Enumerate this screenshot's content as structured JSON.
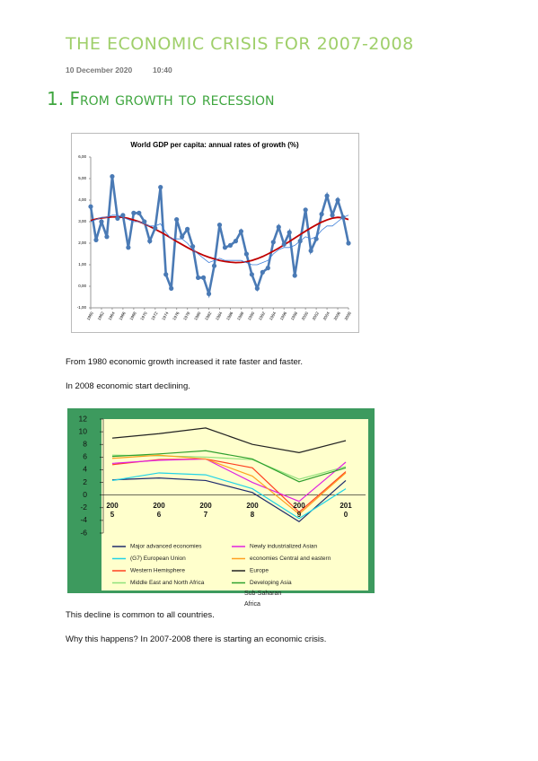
{
  "header": {
    "title": "THE ECONOMIC CRISIS FOR 2007-2008",
    "date": "10 December 2020",
    "time": "10:40"
  },
  "heading": "1. From growth to recession",
  "figures": [
    {
      "type": "line",
      "title": "World GDP per capita: annual rates of growth (%)",
      "x": [
        1960,
        1961,
        1962,
        1963,
        1964,
        1965,
        1966,
        1967,
        1968,
        1969,
        1970,
        1971,
        1972,
        1973,
        1974,
        1975,
        1976,
        1977,
        1978,
        1979,
        1980,
        1981,
        1982,
        1983,
        1984,
        1985,
        1986,
        1987,
        1988,
        1989,
        1990,
        1991,
        1992,
        1993,
        1994,
        1995,
        1996,
        1997,
        1998,
        1999,
        2000,
        2001,
        2002,
        2003,
        2004,
        2005,
        2006,
        2007,
        2008
      ],
      "xlim": [
        1960,
        2008
      ],
      "xticks": [
        1960,
        1962,
        1964,
        1966,
        1968,
        1970,
        1972,
        1974,
        1976,
        1978,
        1980,
        1982,
        1984,
        1986,
        1988,
        1990,
        1992,
        1994,
        1996,
        1998,
        2000,
        2002,
        2004,
        2006,
        2008
      ],
      "ylim": [
        -1,
        6
      ],
      "yticks": [
        {
          "value": 6,
          "label": "6,00"
        },
        {
          "value": 5,
          "label": "5,00"
        },
        {
          "value": 4,
          "label": "4,00"
        },
        {
          "value": 3,
          "label": "3,00"
        },
        {
          "value": 2,
          "label": "2,00"
        },
        {
          "value": 1,
          "label": "1,00"
        },
        {
          "value": 0,
          "label": "0,00"
        },
        {
          "value": -1,
          "label": "-1,00"
        }
      ],
      "series": [
        {
          "color": "#4a7ab5",
          "markers": true,
          "values": [
            3.7,
            2.15,
            3.0,
            2.3,
            5.1,
            3.15,
            3.3,
            1.8,
            3.4,
            3.4,
            3.0,
            2.1,
            2.7,
            4.6,
            0.55,
            -0.1,
            3.1,
            2.3,
            2.65,
            1.85,
            0.4,
            0.4,
            -0.35,
            0.95,
            2.85,
            1.8,
            1.9,
            2.1,
            2.55,
            1.5,
            0.55,
            -0.1,
            0.65,
            0.85,
            2.05,
            2.75,
            1.95,
            2.5,
            0.5,
            2.1,
            3.55,
            1.65,
            2.2,
            3.35,
            4.2,
            3.3,
            4.0,
            3.2,
            2.0
          ]
        },
        {
          "color": "#c00000",
          "values": [
            3.05,
            3.12,
            3.17,
            3.2,
            3.22,
            3.22,
            3.2,
            3.15,
            3.08,
            3.0,
            2.9,
            2.78,
            2.65,
            2.52,
            2.38,
            2.23,
            2.08,
            1.94,
            1.8,
            1.67,
            1.55,
            1.44,
            1.35,
            1.27,
            1.2,
            1.15,
            1.12,
            1.1,
            1.11,
            1.14,
            1.2,
            1.28,
            1.38,
            1.5,
            1.63,
            1.77,
            1.92,
            2.08,
            2.24,
            2.4,
            2.56,
            2.71,
            2.85,
            2.98,
            3.08,
            3.16,
            3.2,
            3.18,
            3.1
          ]
        },
        {
          "color": "#3b7dd8",
          "values": [
            3.0,
            3.1,
            3.2,
            3.2,
            3.3,
            3.3,
            3.2,
            3.1,
            3.0,
            3.0,
            2.9,
            2.8,
            2.8,
            2.9,
            2.5,
            2.2,
            2.2,
            2.2,
            2.0,
            1.7,
            1.5,
            1.3,
            1.1,
            1.2,
            1.3,
            1.2,
            1.2,
            1.2,
            1.2,
            1.1,
            1.0,
            1.0,
            1.1,
            1.2,
            1.5,
            1.7,
            1.8,
            1.8,
            1.9,
            2.1,
            2.3,
            2.2,
            2.3,
            2.6,
            2.8,
            2.8,
            3.0,
            3.2,
            3.3
          ]
        }
      ]
    },
    {
      "type": "line",
      "categories": [
        "2005",
        "2006",
        "2007",
        "2008",
        "2009",
        "2010"
      ],
      "ylim": [
        -6,
        12
      ],
      "yticks": [
        12,
        10,
        8,
        6,
        4,
        2,
        0,
        -2,
        -4,
        -6
      ],
      "series": [
        {
          "name": "Major advanced economies",
          "color": "#1f2a6b",
          "values": [
            2.4,
            2.7,
            2.3,
            0.4,
            -4.2,
            2.3
          ]
        },
        {
          "name": "(G7) European Union",
          "color": "#22d3e6",
          "values": [
            2.3,
            3.5,
            3.2,
            1.0,
            -3.7,
            1.0
          ]
        },
        {
          "name": "Western Hemisphere",
          "color": "#ff4020",
          "values": [
            4.8,
            5.6,
            5.7,
            4.3,
            -2.7,
            3.7
          ]
        },
        {
          "name": "Middle East and North Africa",
          "color": "#8fe07a",
          "values": [
            6.3,
            6.2,
            6.0,
            5.6,
            2.5,
            4.5
          ]
        },
        {
          "name": "Newly industrialized Asian",
          "color": "#e020e0",
          "values": [
            5.0,
            5.5,
            5.7,
            2.0,
            -1.0,
            5.2
          ]
        },
        {
          "name": "economies  Central and eastern",
          "color": "#ffa020",
          "values": [
            5.8,
            6.3,
            5.7,
            3.0,
            -3.0,
            3.5
          ]
        },
        {
          "name": "Europe",
          "color": "#222222",
          "values": [
            9.0,
            9.7,
            10.6,
            8.0,
            6.7,
            8.6
          ]
        },
        {
          "name": "Developing Asia",
          "color": "#2fa02f",
          "values": [
            6.1,
            6.5,
            7.0,
            5.7,
            2.1,
            4.3
          ]
        }
      ],
      "legend_note": "Sub-Saharan Africa"
    }
  ],
  "paragraphs": [
    "From 1980 economic growth increased it rate faster and faster.",
    "In 2008 economic start declining.",
    "This decline is common to all countries.",
    "Why this happens? In 2007-2008 there is starting an economic crisis."
  ]
}
